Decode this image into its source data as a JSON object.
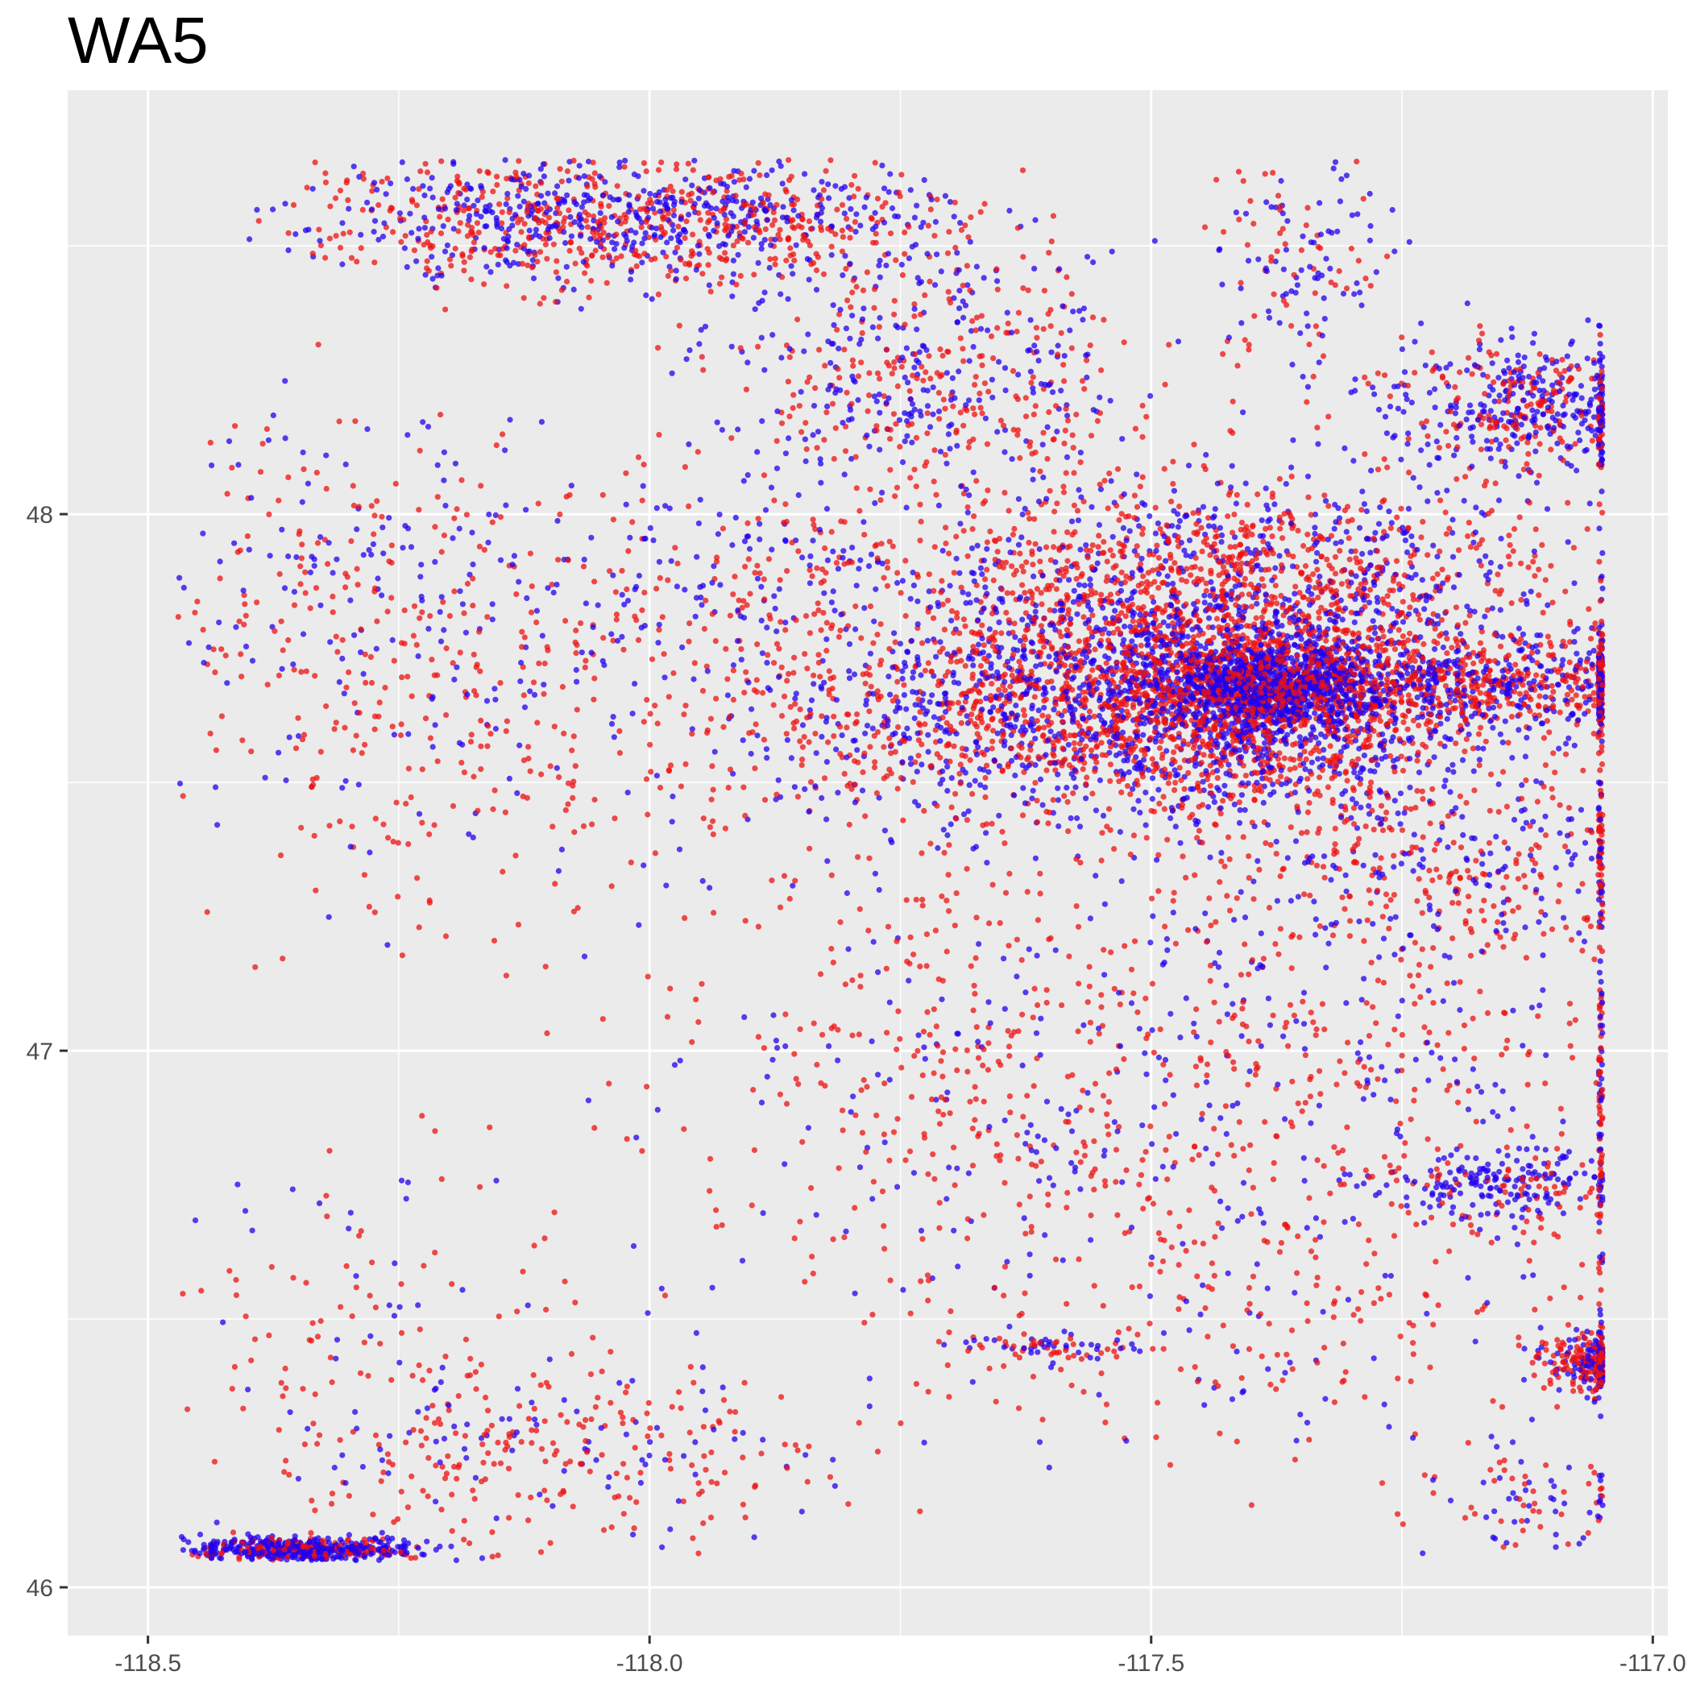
{
  "chart_data": {
    "type": "scatter",
    "title": "WA5",
    "xlabel": "",
    "ylabel": "",
    "xlim": [
      -118.58,
      -116.985
    ],
    "ylim": [
      45.91,
      48.79
    ],
    "x_ticks": [
      -118.5,
      -118.0,
      -117.5,
      -117.0
    ],
    "x_tick_labels": [
      "-118.5",
      "-118.0",
      "-117.5",
      "-117.0"
    ],
    "y_ticks": [
      46,
      47,
      48
    ],
    "y_tick_labels": [
      "46",
      "47",
      "48"
    ],
    "x_minor": [
      -118.25,
      -117.75,
      -117.25
    ],
    "y_minor": [
      46.5,
      47.5,
      48.5
    ],
    "grid": true,
    "legend": "none",
    "colors": {
      "panel": "#ebebeb",
      "grid": "#ffffff",
      "red": "#ee1111",
      "blue": "#2200ee",
      "tick": "#333333",
      "tick_label": "#4d4d4d"
    },
    "clusters": [
      {
        "x": -117.43,
        "y": 47.66,
        "sx": 0.12,
        "sy": 0.11,
        "n": 2200,
        "blue_share": 0.5
      },
      {
        "x": -117.38,
        "y": 47.68,
        "sx": 0.05,
        "sy": 0.04,
        "n": 900,
        "blue_share": 0.8
      },
      {
        "x": -117.2,
        "y": 47.68,
        "sx": 0.14,
        "sy": 0.05,
        "n": 1000,
        "blue_share": 0.45
      },
      {
        "x": -117.5,
        "y": 47.84,
        "sx": 0.15,
        "sy": 0.12,
        "n": 1100,
        "blue_share": 0.35
      },
      {
        "x": -117.65,
        "y": 47.62,
        "sx": 0.12,
        "sy": 0.1,
        "n": 700,
        "blue_share": 0.5
      },
      {
        "x": -117.3,
        "y": 47.92,
        "sx": 0.12,
        "sy": 0.08,
        "n": 400,
        "blue_share": 0.45
      },
      {
        "x": -117.12,
        "y": 48.2,
        "sx": 0.08,
        "sy": 0.06,
        "n": 500,
        "blue_share": 0.6
      },
      {
        "x": -117.72,
        "y": 48.25,
        "sx": 0.1,
        "sy": 0.12,
        "n": 500,
        "blue_share": 0.5
      },
      {
        "x": -117.92,
        "y": 48.55,
        "sx": 0.12,
        "sy": 0.06,
        "n": 650,
        "blue_share": 0.45
      },
      {
        "x": -118.15,
        "y": 48.55,
        "sx": 0.1,
        "sy": 0.07,
        "n": 450,
        "blue_share": 0.5
      },
      {
        "x": -117.35,
        "y": 48.48,
        "sx": 0.05,
        "sy": 0.12,
        "n": 150,
        "blue_share": 0.55
      },
      {
        "x": -117.15,
        "y": 46.75,
        "sx": 0.06,
        "sy": 0.03,
        "n": 220,
        "blue_share": 0.75
      },
      {
        "x": -117.05,
        "y": 46.42,
        "sx": 0.03,
        "sy": 0.025,
        "n": 350,
        "blue_share": 0.35
      },
      {
        "x": -118.35,
        "y": 46.07,
        "sx": 0.06,
        "sy": 0.012,
        "n": 550,
        "blue_share": 0.75
      },
      {
        "x": -118.1,
        "y": 46.25,
        "sx": 0.15,
        "sy": 0.08,
        "n": 300,
        "blue_share": 0.3
      },
      {
        "x": -117.35,
        "y": 46.95,
        "sx": 0.25,
        "sy": 0.2,
        "n": 650,
        "blue_share": 0.35
      },
      {
        "x": -117.68,
        "y": 46.95,
        "sx": 0.15,
        "sy": 0.2,
        "n": 300,
        "blue_share": 0.3
      },
      {
        "x": -118.1,
        "y": 47.6,
        "sx": 0.25,
        "sy": 0.2,
        "n": 500,
        "blue_share": 0.3
      },
      {
        "x": -117.2,
        "y": 47.35,
        "sx": 0.15,
        "sy": 0.1,
        "n": 450,
        "blue_share": 0.35
      },
      {
        "x": -118.3,
        "y": 47.9,
        "sx": 0.12,
        "sy": 0.15,
        "n": 250,
        "blue_share": 0.45
      },
      {
        "x": -117.9,
        "y": 47.9,
        "sx": 0.12,
        "sy": 0.1,
        "n": 200,
        "blue_share": 0.55
      },
      {
        "x": -117.4,
        "y": 46.5,
        "sx": 0.2,
        "sy": 0.15,
        "n": 250,
        "blue_share": 0.3
      },
      {
        "x": -118.3,
        "y": 46.5,
        "sx": 0.15,
        "sy": 0.15,
        "n": 120,
        "blue_share": 0.3
      },
      {
        "x": -117.6,
        "y": 46.45,
        "sx": 0.05,
        "sy": 0.01,
        "n": 70,
        "blue_share": 0.5
      },
      {
        "x": -117.12,
        "y": 46.15,
        "sx": 0.05,
        "sy": 0.05,
        "n": 80,
        "blue_share": 0.45
      }
    ]
  }
}
